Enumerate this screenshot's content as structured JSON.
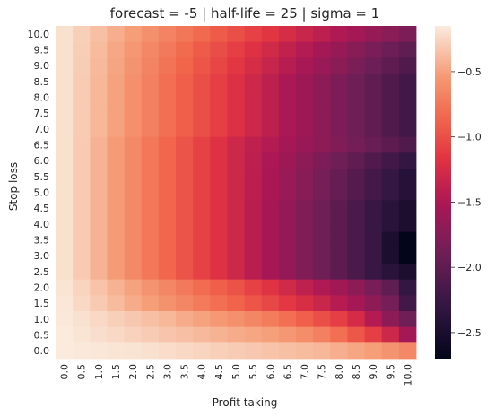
{
  "chart_data": {
    "type": "heatmap",
    "title": "forecast = -5 | half-life = 25  | sigma = 1",
    "xlabel": "Profit taking",
    "ylabel": "Stop loss",
    "x_ticks": [
      "0.0",
      "0.5",
      "1.0",
      "1.5",
      "2.0",
      "2.5",
      "3.0",
      "3.5",
      "4.0",
      "4.5",
      "5.0",
      "5.5",
      "6.0",
      "6.5",
      "7.0",
      "7.5",
      "8.0",
      "8.5",
      "9.0",
      "9.5",
      "10.0"
    ],
    "y_ticks": [
      "10.0",
      "9.5",
      "9.0",
      "8.5",
      "8.0",
      "7.5",
      "7.0",
      "6.5",
      "6.0",
      "5.5",
      "5.0",
      "4.5",
      "4.0",
      "3.5",
      "3.0",
      "2.5",
      "2.0",
      "1.5",
      "1.0",
      "0.5",
      "0.0"
    ],
    "colorbar": {
      "ticks": [
        -0.5,
        -1.0,
        -1.5,
        -2.0,
        -2.5
      ],
      "tick_labels": [
        "−0.5",
        "−1.0",
        "−1.5",
        "−2.0",
        "−2.5"
      ],
      "vmin": -2.7,
      "vmax": -0.15,
      "colormap": "rocket"
    },
    "values": [
      [
        -0.2,
        -0.28,
        -0.36,
        -0.44,
        -0.52,
        -0.6,
        -0.68,
        -0.76,
        -0.84,
        -0.92,
        -1,
        -1.08,
        -1.16,
        -1.24,
        -1.32,
        -1.4,
        -1.48,
        -1.56,
        -1.64,
        -1.72,
        -1.8
      ],
      [
        -0.2,
        -0.29,
        -0.38,
        -0.47,
        -0.56,
        -0.65,
        -0.74,
        -0.83,
        -0.92,
        -1.01,
        -1.1,
        -1.19,
        -1.28,
        -1.37,
        -1.46,
        -1.55,
        -1.64,
        -1.73,
        -1.82,
        -1.91,
        -2
      ],
      [
        -0.2,
        -0.295,
        -0.39,
        -0.485,
        -0.58,
        -0.675,
        -0.77,
        -0.865,
        -0.96,
        -1.055,
        -1.15,
        -1.245,
        -1.34,
        -1.435,
        -1.53,
        -1.625,
        -1.72,
        -1.815,
        -1.91,
        -2.005,
        -2.1
      ],
      [
        -0.2,
        -0.3,
        -0.4,
        -0.5,
        -0.6,
        -0.7,
        -0.8,
        -0.9,
        -1,
        -1.1,
        -1.2,
        -1.3,
        -1.4,
        -1.5,
        -1.6,
        -1.7,
        -1.8,
        -1.9,
        -2,
        -2.1,
        -2.2
      ],
      [
        -0.2,
        -0.3,
        -0.4,
        -0.5,
        -0.6,
        -0.7,
        -0.8,
        -0.9,
        -1,
        -1.1,
        -1.2,
        -1.3,
        -1.4,
        -1.5,
        -1.6,
        -1.7,
        -1.8,
        -1.9,
        -2,
        -2.1,
        -2.2
      ],
      [
        -0.2,
        -0.3,
        -0.4,
        -0.5,
        -0.6,
        -0.7,
        -0.8,
        -0.9,
        -1,
        -1.1,
        -1.2,
        -1.3,
        -1.4,
        -1.5,
        -1.6,
        -1.7,
        -1.8,
        -1.9,
        -2,
        -2.1,
        -2.2
      ],
      [
        -0.2,
        -0.3,
        -0.4,
        -0.5,
        -0.6,
        -0.7,
        -0.8,
        -0.9,
        -1,
        -1.1,
        -1.2,
        -1.3,
        -1.4,
        -1.5,
        -1.6,
        -1.7,
        -1.8,
        -1.9,
        -2,
        -2.1,
        -2.2
      ],
      [
        -0.2,
        -0.31,
        -0.42,
        -0.53,
        -0.64,
        -0.75,
        -0.86,
        -0.97,
        -1.08,
        -1.19,
        -1.3,
        -1.38,
        -1.46,
        -1.54,
        -1.62,
        -1.7,
        -1.78,
        -1.86,
        -1.94,
        -2.02,
        -2.1
      ],
      [
        -0.2,
        -0.31,
        -0.42,
        -0.53,
        -0.64,
        -0.75,
        -0.86,
        -0.97,
        -1.08,
        -1.19,
        -1.3,
        -1.4,
        -1.5,
        -1.6,
        -1.7,
        -1.8,
        -1.9,
        -2,
        -2.1,
        -2.2,
        -2.3
      ],
      [
        -0.2,
        -0.31,
        -0.42,
        -0.53,
        -0.64,
        -0.75,
        -0.86,
        -0.97,
        -1.08,
        -1.19,
        -1.3,
        -1.41,
        -1.52,
        -1.63,
        -1.74,
        -1.85,
        -1.96,
        -2.07,
        -2.18,
        -2.29,
        -2.4
      ],
      [
        -0.2,
        -0.31,
        -0.42,
        -0.53,
        -0.64,
        -0.75,
        -0.86,
        -0.97,
        -1.08,
        -1.19,
        -1.3,
        -1.41,
        -1.52,
        -1.63,
        -1.74,
        -1.85,
        -1.96,
        -2.07,
        -2.18,
        -2.29,
        -2.4
      ],
      [
        -0.2,
        -0.31,
        -0.42,
        -0.53,
        -0.64,
        -0.75,
        -0.86,
        -0.97,
        -1.08,
        -1.19,
        -1.3,
        -1.42,
        -1.54,
        -1.66,
        -1.78,
        -1.9,
        -2.02,
        -2.14,
        -2.26,
        -2.38,
        -2.5
      ],
      [
        -0.2,
        -0.31,
        -0.42,
        -0.53,
        -0.64,
        -0.75,
        -0.86,
        -0.97,
        -1.08,
        -1.19,
        -1.3,
        -1.42,
        -1.54,
        -1.66,
        -1.78,
        -1.9,
        -2.02,
        -2.14,
        -2.26,
        -2.38,
        -2.5
      ],
      [
        -0.2,
        -0.31,
        -0.42,
        -0.53,
        -0.64,
        -0.75,
        -0.86,
        -0.97,
        -1.08,
        -1.19,
        -1.3,
        -1.42,
        -1.54,
        -1.66,
        -1.78,
        -1.9,
        -2.02,
        -2.14,
        -2.26,
        -2.5,
        -2.7
      ],
      [
        -0.2,
        -0.31,
        -0.42,
        -0.53,
        -0.64,
        -0.75,
        -0.86,
        -0.97,
        -1.08,
        -1.19,
        -1.3,
        -1.42,
        -1.54,
        -1.66,
        -1.78,
        -1.9,
        -2.02,
        -2.14,
        -2.26,
        -2.5,
        -2.7
      ],
      [
        -0.2,
        -0.31,
        -0.42,
        -0.53,
        -0.64,
        -0.75,
        -0.86,
        -0.97,
        -1.08,
        -1.19,
        -1.3,
        -1.42,
        -1.54,
        -1.66,
        -1.78,
        -1.9,
        -2.02,
        -2.14,
        -2.26,
        -2.38,
        -2.5
      ],
      [
        -0.18,
        -0.26,
        -0.34,
        -0.42,
        -0.5,
        -0.58,
        -0.66,
        -0.74,
        -0.82,
        -0.9,
        -0.98,
        -1.08,
        -1.18,
        -1.28,
        -1.38,
        -1.48,
        -1.58,
        -1.7,
        -1.84,
        -2,
        -2.3
      ],
      [
        -0.17,
        -0.24,
        -0.31,
        -0.38,
        -0.45,
        -0.52,
        -0.59,
        -0.66,
        -0.73,
        -0.8,
        -0.87,
        -0.96,
        -1.05,
        -1.14,
        -1.23,
        -1.32,
        -1.44,
        -1.56,
        -1.7,
        -1.85,
        -2.2
      ],
      [
        -0.16,
        -0.2,
        -0.24,
        -0.28,
        -0.32,
        -0.36,
        -0.4,
        -0.45,
        -0.5,
        -0.55,
        -0.6,
        -0.66,
        -0.72,
        -0.8,
        -0.9,
        -1,
        -1.1,
        -1.25,
        -1.45,
        -1.7,
        -1.9
      ],
      [
        -0.15,
        -0.18,
        -0.21,
        -0.24,
        -0.27,
        -0.3,
        -0.33,
        -0.36,
        -0.39,
        -0.42,
        -0.45,
        -0.48,
        -0.51,
        -0.56,
        -0.62,
        -0.7,
        -0.8,
        -0.95,
        -1.1,
        -1.3,
        -1.55
      ],
      [
        -0.15,
        -0.16,
        -0.17,
        -0.18,
        -0.19,
        -0.2,
        -0.22,
        -0.24,
        -0.26,
        -0.28,
        -0.3,
        -0.32,
        -0.34,
        -0.36,
        -0.38,
        -0.4,
        -0.44,
        -0.48,
        -0.52,
        -0.58,
        -0.65
      ]
    ]
  }
}
